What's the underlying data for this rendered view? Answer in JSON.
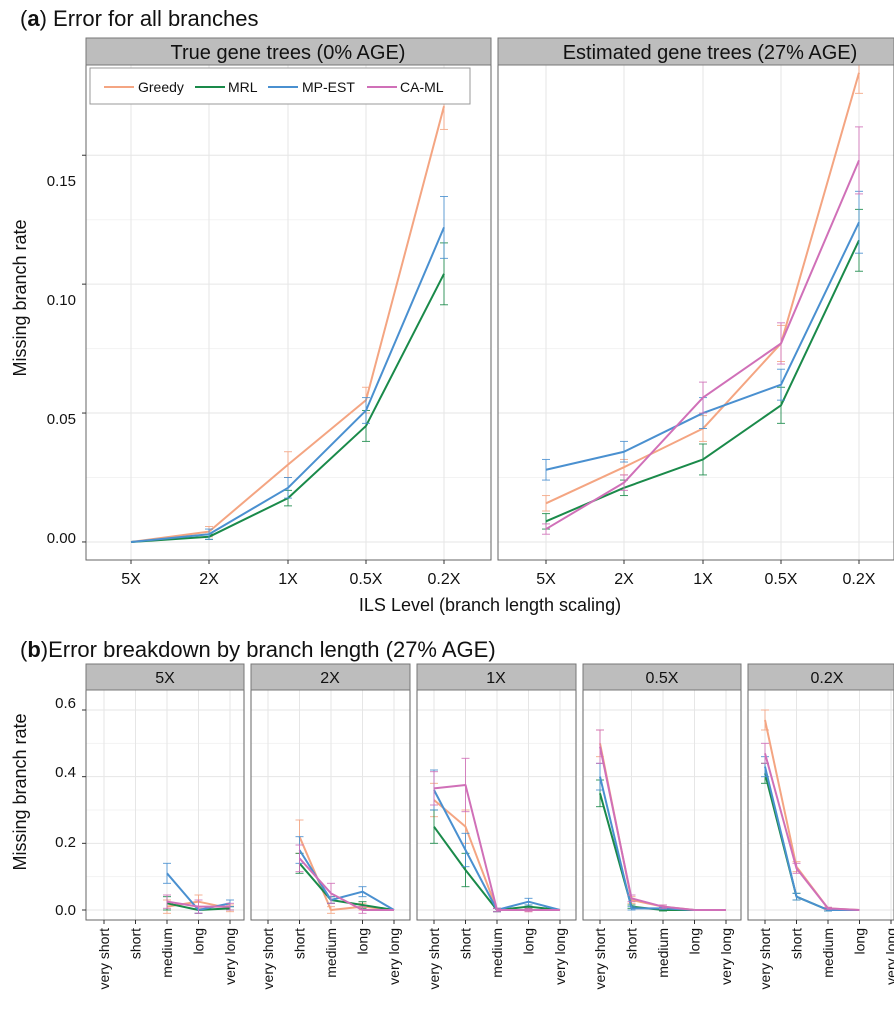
{
  "colors": {
    "Greedy": "#f4a582",
    "MRL": "#1a8a4a",
    "MP-EST": "#4a90d0",
    "CA-ML": "#d070b8",
    "strip_bg": "#bdbdbd",
    "grid": "#ebebeb",
    "panel_border": "#666666"
  },
  "panel_a": {
    "label": "a",
    "title": "Error for all branches",
    "facets": [
      "True gene trees (0% AGE)",
      "Estimated gene trees (27% AGE)"
    ],
    "xlabel": "ILS Level (branch length scaling)",
    "ylabel": "Missing branch rate",
    "yticks": [
      "0.00",
      "0.05",
      "0.10",
      "0.15"
    ],
    "legend_labels": [
      "Greedy",
      "MRL",
      "MP-EST",
      "CA-ML"
    ]
  },
  "panel_b": {
    "label": "b",
    "title": "Error breakdown by branch length (27% AGE)",
    "facets": [
      "5X",
      "2X",
      "1X",
      "0.5X",
      "0.2X"
    ],
    "ylabel": "Missing branch rate",
    "yticks": [
      "0.0",
      "0.2",
      "0.4",
      "0.6"
    ]
  },
  "chart_data": [
    {
      "type": "line",
      "title": "Error for all branches",
      "facet": "True gene trees (0% AGE)",
      "xlabel": "ILS Level (branch length scaling)",
      "ylabel": "Missing branch rate",
      "categories": [
        "5X",
        "2X",
        "1X",
        "0.5X",
        "0.2X"
      ],
      "ylim": [
        -0.007,
        0.185
      ],
      "grid": true,
      "legend": "top-left",
      "series": [
        {
          "name": "Greedy",
          "values": [
            0.0,
            0.004,
            0.03,
            0.055,
            0.169
          ],
          "err": [
            0.0,
            0.002,
            0.005,
            0.005,
            0.009
          ]
        },
        {
          "name": "MRL",
          "values": [
            0.0,
            0.002,
            0.017,
            0.045,
            0.104
          ],
          "err": [
            0.0,
            0.001,
            0.003,
            0.006,
            0.012
          ]
        },
        {
          "name": "MP-EST",
          "values": [
            0.0,
            0.003,
            0.021,
            0.051,
            0.122
          ],
          "err": [
            0.0,
            0.002,
            0.004,
            0.005,
            0.012
          ]
        }
      ]
    },
    {
      "type": "line",
      "facet": "Estimated gene trees (27% AGE)",
      "xlabel": "ILS Level (branch length scaling)",
      "categories": [
        "5X",
        "2X",
        "1X",
        "0.5X",
        "0.2X"
      ],
      "ylim": [
        -0.007,
        0.185
      ],
      "grid": true,
      "series": [
        {
          "name": "Greedy",
          "values": [
            0.015,
            0.029,
            0.044,
            0.077,
            0.182
          ],
          "err": [
            0.003,
            0.003,
            0.005,
            0.007,
            0.008
          ]
        },
        {
          "name": "MRL",
          "values": [
            0.008,
            0.021,
            0.032,
            0.053,
            0.117
          ],
          "err": [
            0.003,
            0.003,
            0.006,
            0.007,
            0.012
          ]
        },
        {
          "name": "MP-EST",
          "values": [
            0.028,
            0.035,
            0.05,
            0.061,
            0.124
          ],
          "err": [
            0.004,
            0.004,
            0.006,
            0.006,
            0.012
          ]
        },
        {
          "name": "CA-ML",
          "values": [
            0.005,
            0.023,
            0.056,
            0.077,
            0.148
          ],
          "err": [
            0.002,
            0.003,
            0.006,
            0.008,
            0.013
          ]
        }
      ]
    },
    {
      "type": "line",
      "title": "Error breakdown by branch length (27% AGE)",
      "facet": "5X",
      "ylabel": "Missing branch rate",
      "categories": [
        "very short",
        "short",
        "medium",
        "long",
        "very long"
      ],
      "ylim": [
        -0.03,
        0.66
      ],
      "series": [
        {
          "name": "Greedy",
          "values": [
            null,
            null,
            0.01,
            0.025,
            0.005
          ],
          "err": [
            0,
            0,
            0.02,
            0.02,
            0.01
          ]
        },
        {
          "name": "MRL",
          "values": [
            null,
            null,
            0.02,
            0.0,
            0.005
          ],
          "err": [
            0,
            0,
            0.02,
            0.01,
            0.005
          ]
        },
        {
          "name": "MP-EST",
          "values": [
            null,
            null,
            0.11,
            0.0,
            0.02
          ],
          "err": [
            0,
            0,
            0.03,
            0.01,
            0.01
          ]
        },
        {
          "name": "CA-ML",
          "values": [
            null,
            null,
            0.025,
            0.01,
            0.01
          ],
          "err": [
            0,
            0,
            0.02,
            0.02,
            0.01
          ]
        }
      ]
    },
    {
      "type": "line",
      "facet": "2X",
      "categories": [
        "very short",
        "short",
        "medium",
        "long",
        "very long"
      ],
      "ylim": [
        -0.03,
        0.66
      ],
      "series": [
        {
          "name": "Greedy",
          "values": [
            null,
            0.22,
            0.0,
            0.01,
            0.0
          ],
          "err": [
            0,
            0.05,
            0.01,
            0.01,
            0.0
          ]
        },
        {
          "name": "MRL",
          "values": [
            null,
            0.14,
            0.03,
            0.015,
            0.0
          ],
          "err": [
            0,
            0.03,
            0.01,
            0.01,
            0.0
          ]
        },
        {
          "name": "MP-EST",
          "values": [
            null,
            0.18,
            0.03,
            0.055,
            0.0
          ],
          "err": [
            0,
            0.04,
            0.01,
            0.015,
            0.0
          ]
        },
        {
          "name": "CA-ML",
          "values": [
            null,
            0.155,
            0.05,
            0.0,
            0.0
          ],
          "err": [
            0,
            0.04,
            0.03,
            0.01,
            0.0
          ]
        }
      ]
    },
    {
      "type": "line",
      "facet": "1X",
      "categories": [
        "very short",
        "short",
        "medium",
        "long",
        "very long"
      ],
      "ylim": [
        -0.03,
        0.66
      ],
      "series": [
        {
          "name": "Greedy",
          "values": [
            0.33,
            0.25,
            0.0,
            0.0,
            0.0
          ],
          "err": [
            0.05,
            0.05,
            0.005,
            0.005,
            0.0
          ]
        },
        {
          "name": "MRL",
          "values": [
            0.25,
            0.12,
            0.0,
            0.01,
            0.0
          ],
          "err": [
            0.05,
            0.05,
            0.005,
            0.005,
            0.0
          ]
        },
        {
          "name": "MP-EST",
          "values": [
            0.36,
            0.18,
            0.0,
            0.025,
            0.0
          ],
          "err": [
            0.06,
            0.05,
            0.005,
            0.01,
            0.0
          ]
        },
        {
          "name": "CA-ML",
          "values": [
            0.365,
            0.375,
            0.0,
            0.0,
            0.0
          ],
          "err": [
            0.05,
            0.08,
            0.005,
            0.005,
            0.0
          ]
        }
      ]
    },
    {
      "type": "line",
      "facet": "0.5X",
      "categories": [
        "very short",
        "short",
        "medium",
        "long",
        "very long"
      ],
      "ylim": [
        -0.03,
        0.66
      ],
      "series": [
        {
          "name": "Greedy",
          "values": [
            0.5,
            0.03,
            0.01,
            0.0,
            0.0
          ],
          "err": [
            0.04,
            0.01,
            0.005,
            0.0,
            0.0
          ]
        },
        {
          "name": "MRL",
          "values": [
            0.35,
            0.01,
            0.0,
            0.0,
            0.0
          ],
          "err": [
            0.04,
            0.005,
            0.003,
            0.0,
            0.0
          ]
        },
        {
          "name": "MP-EST",
          "values": [
            0.4,
            0.005,
            0.005,
            0.0,
            0.0
          ],
          "err": [
            0.04,
            0.005,
            0.003,
            0.0,
            0.0
          ]
        },
        {
          "name": "CA-ML",
          "values": [
            0.49,
            0.035,
            0.01,
            0.0,
            0.0
          ],
          "err": [
            0.05,
            0.01,
            0.005,
            0.0,
            0.0
          ]
        }
      ]
    },
    {
      "type": "line",
      "facet": "0.2X",
      "categories": [
        "very short",
        "short",
        "medium",
        "long",
        "very long"
      ],
      "ylim": [
        -0.03,
        0.66
      ],
      "series": [
        {
          "name": "Greedy",
          "values": [
            0.57,
            0.13,
            0.005,
            0.0,
            null
          ],
          "err": [
            0.03,
            0.015,
            0.003,
            0.0,
            0
          ]
        },
        {
          "name": "MRL",
          "values": [
            0.41,
            0.04,
            0.0,
            0.0,
            null
          ],
          "err": [
            0.03,
            0.01,
            0.003,
            0.0,
            0
          ]
        },
        {
          "name": "MP-EST",
          "values": [
            0.43,
            0.04,
            0.0,
            0.0,
            null
          ],
          "err": [
            0.03,
            0.01,
            0.003,
            0.0,
            0
          ]
        },
        {
          "name": "CA-ML",
          "values": [
            0.47,
            0.125,
            0.005,
            0.0,
            null
          ],
          "err": [
            0.03,
            0.015,
            0.003,
            0.0,
            0
          ]
        }
      ]
    }
  ]
}
